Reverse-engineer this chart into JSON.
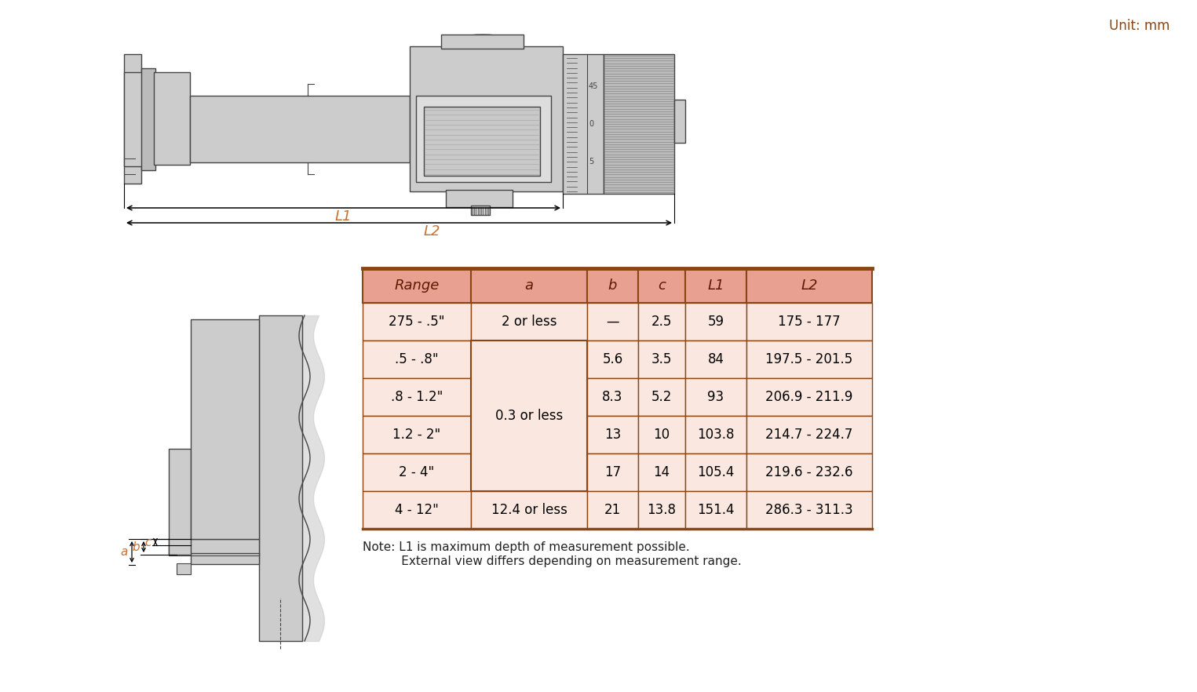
{
  "unit_label": "Unit: mm",
  "unit_color": "#8B4513",
  "header_bg": "#E8A090",
  "row_bg_light": "#FAE8E0",
  "table_border": "#8B4513",
  "table_headers": [
    "Range",
    "a",
    "b",
    "c",
    "L1",
    "L2"
  ],
  "table_rows": [
    [
      "275 - .5\"",
      "2 or less",
      "—",
      "2.5",
      "59",
      "175 - 177"
    ],
    [
      ".5 - .8\"",
      "",
      "5.6",
      "3.5",
      "84",
      "197.5 - 201.5"
    ],
    [
      ".8 - 1.2\"",
      "0.3 or less",
      "8.3",
      "5.2",
      "93",
      "206.9 - 211.9"
    ],
    [
      "1.2 - 2\"",
      "",
      "13",
      "10",
      "103.8",
      "214.7 - 224.7"
    ],
    [
      "2 - 4\"",
      "",
      "17",
      "14",
      "105.4",
      "219.6 - 232.6"
    ],
    [
      "4 - 12\"",
      "12.4 or less",
      "21",
      "13.8",
      "151.4",
      "286.3 - 311.3"
    ]
  ],
  "note_line1": "Note: L1 is maximum depth of measurement possible.",
  "note_line2": "      External view differs depending on measurement range.",
  "bg_color": "#FFFFFF",
  "diagram_color": "#CCCCCC",
  "diagram_color2": "#BBBBBB",
  "diagram_line_color": "#444444",
  "label_color": "#C87030",
  "arrow_color": "#000000"
}
